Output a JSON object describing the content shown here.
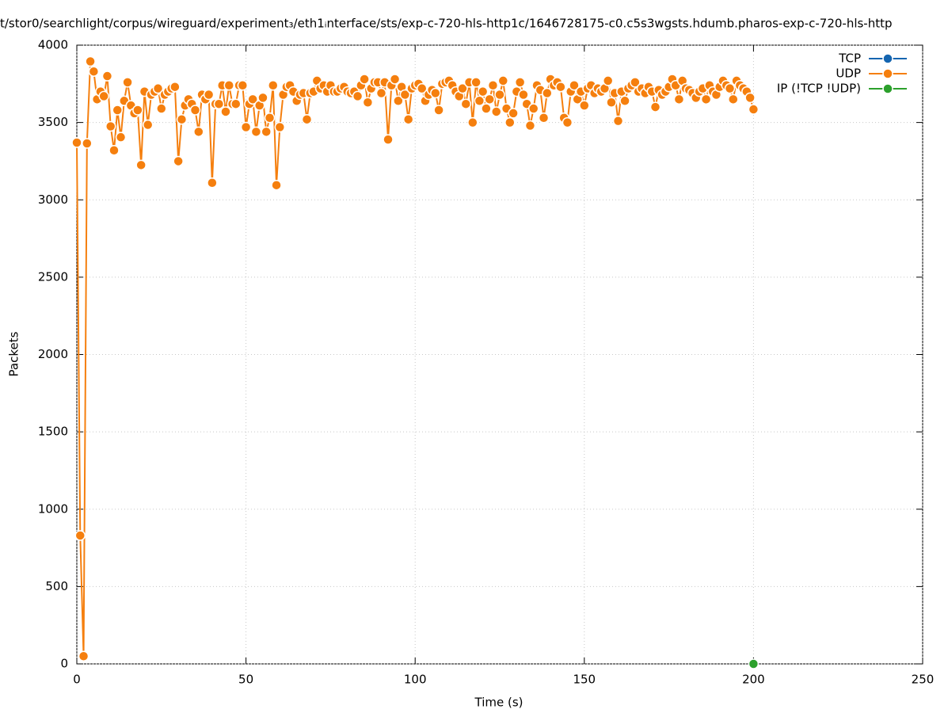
{
  "chart_data": {
    "type": "line",
    "title": "t/stor0/searchlight/corpus/wireguard/experiment₃/eth1ᵢnterface/sts/exp-c-720-hls-http1c/1646728175-c0.c5s3wgsts.hdumb.pharos-exp-c-720-hls-http",
    "x_label": "Time (s)",
    "y_label": "Packets",
    "xlim": [
      0,
      250
    ],
    "xticks": [
      0,
      50,
      100,
      150,
      200,
      250
    ],
    "ylim": [
      0,
      4000
    ],
    "yticks": [
      0,
      500,
      1000,
      1500,
      2000,
      2500,
      3000,
      3500,
      4000
    ],
    "grid": true,
    "legend": "top-right",
    "series": [
      {
        "name": "TCP",
        "color": "#1565b0",
        "x": [],
        "values": []
      },
      {
        "name": "UDP",
        "color": "#f57f0e",
        "x": [
          0,
          1,
          2,
          3,
          4,
          5,
          6,
          7,
          8,
          9,
          10,
          11,
          12,
          13,
          14,
          15,
          16,
          17,
          18,
          19,
          20,
          21,
          22,
          23,
          24,
          25,
          26,
          27,
          28,
          29,
          30,
          31,
          32,
          33,
          34,
          35,
          36,
          37,
          38,
          39,
          40,
          41,
          42,
          43,
          44,
          45,
          46,
          47,
          48,
          49,
          50,
          51,
          52,
          53,
          54,
          55,
          56,
          57,
          58,
          59,
          60,
          61,
          62,
          63,
          64,
          65,
          66,
          67,
          68,
          69,
          70,
          71,
          72,
          73,
          74,
          75,
          76,
          77,
          78,
          79,
          80,
          81,
          82,
          83,
          84,
          85,
          86,
          87,
          88,
          89,
          90,
          91,
          92,
          93,
          94,
          95,
          96,
          97,
          98,
          99,
          100,
          101,
          102,
          103,
          104,
          105,
          106,
          107,
          108,
          109,
          110,
          111,
          112,
          113,
          114,
          115,
          116,
          117,
          118,
          119,
          120,
          121,
          122,
          123,
          124,
          125,
          126,
          127,
          128,
          129,
          130,
          131,
          132,
          133,
          134,
          135,
          136,
          137,
          138,
          139,
          140,
          141,
          142,
          143,
          144,
          145,
          146,
          147,
          148,
          149,
          150,
          151,
          152,
          153,
          154,
          155,
          156,
          157,
          158,
          159,
          160,
          161,
          162,
          163,
          164,
          165,
          166,
          167,
          168,
          169,
          170,
          171,
          172,
          173,
          174,
          175,
          176,
          177,
          178,
          179,
          180,
          181,
          182,
          183,
          184,
          185,
          186,
          187,
          188,
          189,
          190,
          191,
          192,
          193,
          194,
          195,
          196,
          197,
          198,
          199,
          200
        ],
        "values": [
          3370,
          830,
          50,
          3365,
          3895,
          3830,
          3650,
          3700,
          3670,
          3800,
          3475,
          3320,
          3580,
          3405,
          3640,
          3760,
          3610,
          3560,
          3580,
          3225,
          3700,
          3485,
          3680,
          3700,
          3720,
          3590,
          3680,
          3700,
          3720,
          3730,
          3250,
          3520,
          3610,
          3650,
          3620,
          3580,
          3440,
          3680,
          3650,
          3680,
          3110,
          3620,
          3620,
          3740,
          3570,
          3740,
          3620,
          3620,
          3740,
          3740,
          3470,
          3620,
          3650,
          3440,
          3610,
          3660,
          3440,
          3530,
          3740,
          3095,
          3470,
          3680,
          3730,
          3740,
          3700,
          3640,
          3680,
          3690,
          3520,
          3690,
          3700,
          3770,
          3720,
          3740,
          3700,
          3740,
          3700,
          3700,
          3720,
          3730,
          3700,
          3690,
          3700,
          3670,
          3740,
          3780,
          3630,
          3720,
          3760,
          3760,
          3690,
          3760,
          3390,
          3740,
          3780,
          3640,
          3730,
          3680,
          3520,
          3720,
          3740,
          3750,
          3720,
          3640,
          3680,
          3710,
          3690,
          3580,
          3750,
          3760,
          3770,
          3740,
          3700,
          3670,
          3720,
          3620,
          3760,
          3500,
          3760,
          3640,
          3700,
          3590,
          3650,
          3740,
          3570,
          3680,
          3770,
          3590,
          3500,
          3560,
          3700,
          3760,
          3680,
          3620,
          3480,
          3590,
          3740,
          3710,
          3530,
          3690,
          3780,
          3740,
          3760,
          3730,
          3530,
          3500,
          3700,
          3740,
          3650,
          3700,
          3610,
          3720,
          3740,
          3690,
          3720,
          3700,
          3720,
          3770,
          3630,
          3690,
          3510,
          3700,
          3640,
          3720,
          3740,
          3760,
          3700,
          3720,
          3690,
          3730,
          3700,
          3600,
          3710,
          3680,
          3700,
          3730,
          3780,
          3740,
          3650,
          3770,
          3720,
          3710,
          3690,
          3660,
          3700,
          3720,
          3650,
          3740,
          3700,
          3680,
          3730,
          3770,
          3740,
          3720,
          3650,
          3770,
          3740,
          3720,
          3700,
          3660,
          3585
        ]
      },
      {
        "name": "IP (!TCP  !UDP)",
        "color": "#2ca02c",
        "x": [
          200
        ],
        "values": [
          0
        ]
      }
    ]
  }
}
